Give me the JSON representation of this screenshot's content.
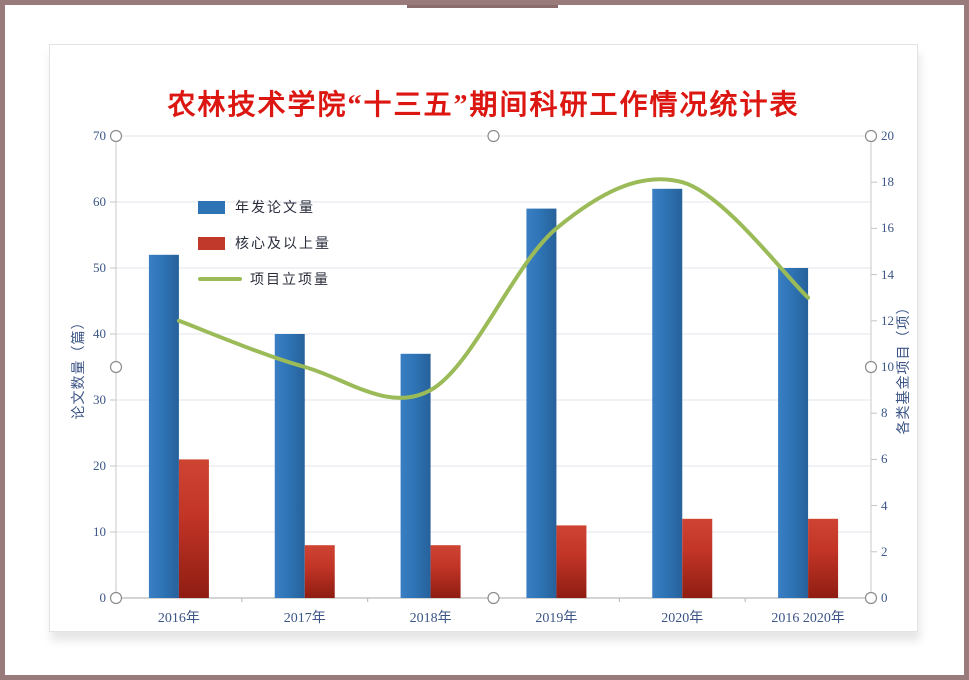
{
  "window": {
    "border_color": "#9a7b7b",
    "top_tab_color": "#8a6c6c"
  },
  "chart": {
    "title": "农林技术学院“十三五”期间科研工作情况统计表",
    "title_color": "#dc1712"
  },
  "chart_data": {
    "type": "bar",
    "subtype": "bar+line combo, dual axis",
    "title": "农林技术学院“十三五”期间科研工作情况统计表",
    "categories": [
      "2016年",
      "2017年",
      "2018年",
      "2019年",
      "2020年",
      "2016 2020年"
    ],
    "series": [
      {
        "name": "年发论文量",
        "type": "bar",
        "axis": "left",
        "color": "#2e74b5",
        "values": [
          52,
          40,
          37,
          59,
          62,
          50
        ]
      },
      {
        "name": "核心及以上量",
        "type": "bar",
        "axis": "left",
        "color": "#c0392b",
        "values": [
          21,
          8,
          8,
          11,
          12,
          12
        ]
      },
      {
        "name": "项目立项量",
        "type": "line",
        "axis": "right",
        "color": "#9bbb59",
        "values": [
          12,
          10,
          9,
          16,
          18,
          13
        ]
      }
    ],
    "left_axis": {
      "title": "论文数量（篇）",
      "min": 0,
      "max": 70,
      "step": 10
    },
    "right_axis": {
      "title": "各类基金项目（项）",
      "min": 0,
      "max": 20,
      "step": 2
    },
    "grid": true,
    "legend_position": "inside-upper-left",
    "selection_handles_visible": true
  },
  "colors": {
    "gridline": "#e2e6ee",
    "axis_side": "#c8c8c8",
    "axis_bottom": "#a8a8a8",
    "tick_text": "#3c5586",
    "handle_stroke": "#8c8c8c"
  }
}
